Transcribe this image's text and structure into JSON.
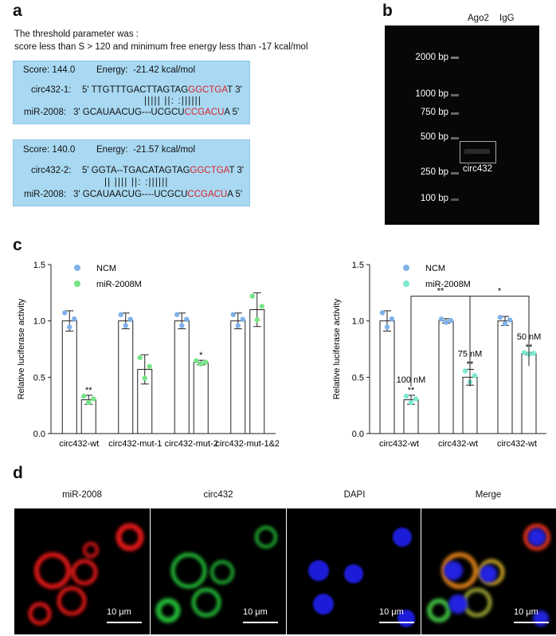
{
  "panels": {
    "a": "a",
    "b": "b",
    "c": "c",
    "d": "d"
  },
  "panel_a": {
    "threshold_line1": "The threshold parameter was :",
    "threshold_line2": "score less than S > 120 and minimum free energy less than -17 kcal/mol",
    "box1": {
      "score": "Score: 144.0",
      "energy": "Energy:  -21.42 kcal/mol",
      "top_label": "circ432-1:",
      "top_prefix": "5' TTGTTTGACTTAGTAG",
      "top_red": "GGCTGA",
      "top_suffix": "T 3'",
      "pairing": "||||| ||: :||||||",
      "bot_label": "miR-2008:",
      "bot_prefix": "3' GCAUAACUG---UCGCU",
      "bot_red": "CCGACU",
      "bot_suffix": "A 5'"
    },
    "box2": {
      "score": "Score: 140.0",
      "energy": "Energy:  -21.57 kcal/mol",
      "top_label": "circ432-2:",
      "top_prefix": "5' GGTA--TGACATAGTAG",
      "top_red": "GGCTGA",
      "top_suffix": "T 3'",
      "pairing": "|| |||| ||: :||||||",
      "bot_label": "miR-2008:",
      "bot_prefix": "3' GCAUAACUG----UCGCU",
      "bot_red": "CCGACU",
      "bot_suffix": "A 5'"
    }
  },
  "panel_b": {
    "lane1": "Ago2",
    "lane2": "IgG",
    "ladder": [
      "2000 bp",
      "1000 bp",
      "750 bp",
      "500 bp",
      "250 bp",
      "100 bp"
    ],
    "band_label": "circ432"
  },
  "chart_data": [
    {
      "type": "bar",
      "ylabel": "Relative luciferase activity",
      "ylim": [
        0,
        1.5
      ],
      "yticks": [
        "0.0",
        "0.5",
        "1.0",
        "1.5"
      ],
      "categories": [
        "circ432-wt",
        "circ432-mut-1",
        "circ432-mut-2",
        "circ432-mut-1&2"
      ],
      "legend_position": "top-left",
      "series": [
        {
          "name": "NCM",
          "values": [
            1.0,
            1.0,
            1.0,
            1.0
          ],
          "errors": [
            0.09,
            0.07,
            0.07,
            0.07
          ],
          "color": "#7fb2ea"
        },
        {
          "name": "miR-2008M",
          "values": [
            0.3,
            0.57,
            0.63,
            1.1
          ],
          "errors": [
            0.04,
            0.13,
            0.02,
            0.15
          ],
          "color": "#77e486"
        }
      ],
      "significance": [
        "**",
        "",
        "*",
        ""
      ]
    },
    {
      "type": "bar",
      "ylabel": "Relative luciferase activity",
      "ylim": [
        0,
        1.5
      ],
      "yticks": [
        "0.0",
        "0.5",
        "1.0",
        "1.5"
      ],
      "categories": [
        "circ432-wt",
        "circ432-wt",
        "circ432-wt"
      ],
      "legend_position": "top-left",
      "series": [
        {
          "name": "NCM",
          "values": [
            1.0,
            1.0,
            1.0
          ],
          "errors": [
            0.09,
            0.02,
            0.04
          ],
          "color": "#7fb2ea"
        },
        {
          "name": "miR-2008M",
          "values": [
            0.3,
            0.5,
            0.71
          ],
          "errors": [
            0.04,
            0.07,
            0.01
          ],
          "color": "#7ce8d0"
        }
      ],
      "concentrations": [
        "100 nM",
        "75 nM",
        "50 nM"
      ],
      "significance": [
        "**",
        "**",
        "**"
      ],
      "brackets": [
        {
          "from": 0,
          "to": 1,
          "label": "**"
        },
        {
          "from": 1,
          "to": 2,
          "label": "*"
        }
      ]
    }
  ],
  "panel_d": {
    "titles": [
      "miR-2008",
      "circ432",
      "DAPI",
      "Merge"
    ],
    "scale": "10 μm"
  }
}
